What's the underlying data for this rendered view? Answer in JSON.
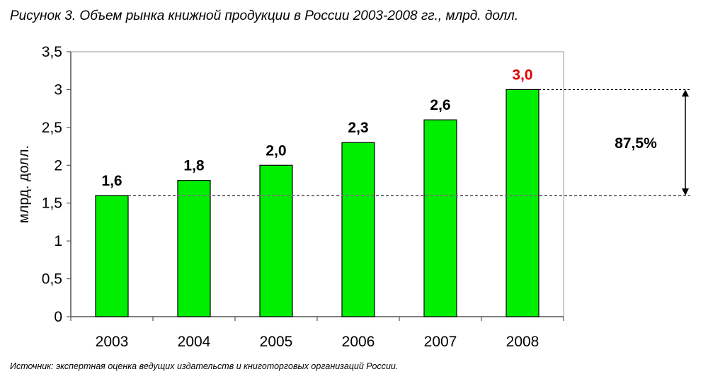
{
  "title": "Рисунок 3. Объем рынка книжной продукции в России 2003-2008 гг., млрд. долл.",
  "source": "Источник: экспертная оценка ведущих издательств и книготорговых организаций России.",
  "colors": {
    "bar": "#00ee00",
    "bar_stroke": "#000000",
    "highlight_label": "#e00000",
    "dashed_line": "#777777"
  },
  "chart_data": {
    "type": "bar",
    "categories": [
      "2003",
      "2004",
      "2005",
      "2006",
      "2007",
      "2008"
    ],
    "values": [
      1.6,
      1.8,
      2.0,
      2.3,
      2.6,
      3.0
    ],
    "value_labels": [
      "1,6",
      "1,8",
      "2,0",
      "2,3",
      "2,6",
      "3,0"
    ],
    "highlight_index": 5,
    "ylabel": "млрд. долл.",
    "xlabel": "",
    "ylim": [
      0,
      3.5
    ],
    "yticks": [
      0,
      0.5,
      1,
      1.5,
      2,
      2.5,
      3,
      3.5
    ],
    "ytick_labels": [
      "0",
      "0,5",
      "1",
      "1,5",
      "2",
      "2,5",
      "3",
      "3,5"
    ],
    "grid": false,
    "annotation": {
      "text": "87,5%",
      "from_value": 1.6,
      "to_value": 3.0
    }
  }
}
